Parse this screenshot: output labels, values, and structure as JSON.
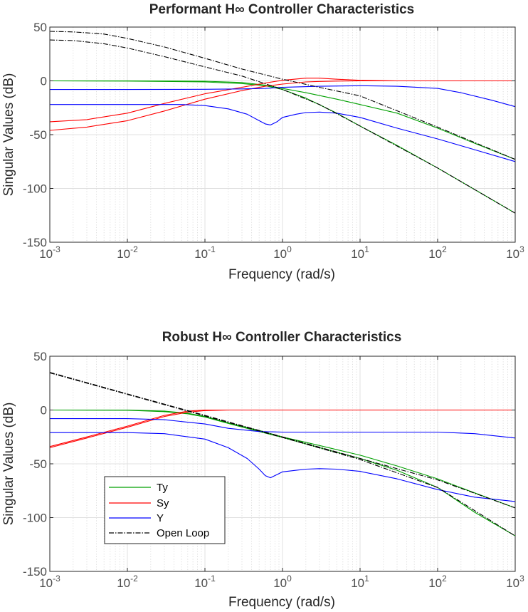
{
  "chart_data": [
    {
      "type": "line",
      "title": "Performant H∞ Controller Characteristics",
      "xlabel": "Frequency (rad/s)",
      "ylabel": "Singular Values (dB)",
      "xscale": "log",
      "xlim": [
        0.001,
        1000
      ],
      "ylim": [
        -150,
        50
      ],
      "xticks": [
        0.001,
        0.01,
        0.1,
        1,
        10,
        100,
        1000
      ],
      "xtick_labels": [
        [
          "10",
          "-3"
        ],
        [
          "10",
          "-2"
        ],
        [
          "10",
          "-1"
        ],
        [
          "10",
          "0"
        ],
        [
          "10",
          "1"
        ],
        [
          "10",
          "2"
        ],
        [
          "10",
          "3"
        ]
      ],
      "yticks": [
        -150,
        -100,
        -50,
        0,
        50
      ],
      "ytick_labels": [
        "-150",
        "-100",
        "-50",
        "0",
        "50"
      ],
      "grid": true,
      "legend": false,
      "series": [
        {
          "group": "Ty",
          "color": "#00a000",
          "x": [
            0.001,
            0.01,
            0.1,
            0.3,
            0.6,
            1,
            2,
            5,
            10,
            30,
            100,
            300,
            1000
          ],
          "y": [
            0,
            0,
            -0.3,
            -1.5,
            -4,
            -7,
            -11,
            -17,
            -22,
            -30,
            -44,
            -58,
            -73
          ]
        },
        {
          "group": "Ty",
          "color": "#00a000",
          "x": [
            0.001,
            0.01,
            0.1,
            0.3,
            0.6,
            1,
            2,
            5,
            10,
            30,
            100,
            300,
            1000
          ],
          "y": [
            0,
            -0.2,
            -1,
            -2.5,
            -4.5,
            -8,
            -16,
            -30,
            -42,
            -60,
            -81,
            -101,
            -123
          ]
        },
        {
          "group": "Sy",
          "color": "#ff0000",
          "x": [
            0.001,
            0.003,
            0.01,
            0.03,
            0.1,
            0.3,
            0.6,
            1,
            2,
            3,
            5,
            10,
            30,
            100,
            1000
          ],
          "y": [
            -38,
            -36,
            -30,
            -21,
            -12,
            -6,
            -2,
            0.5,
            2.5,
            2.5,
            1.5,
            0.5,
            0,
            0,
            0
          ]
        },
        {
          "group": "Sy",
          "color": "#ff0000",
          "x": [
            0.001,
            0.003,
            0.01,
            0.03,
            0.1,
            0.3,
            0.6,
            1,
            2,
            3,
            5,
            10,
            30,
            100,
            1000
          ],
          "y": [
            -46,
            -43,
            -37,
            -28,
            -17,
            -9,
            -5,
            -3,
            -1,
            -0.5,
            -0.2,
            0,
            0,
            0,
            0
          ]
        },
        {
          "group": "Y",
          "color": "#0000ff",
          "x": [
            0.001,
            0.01,
            0.1,
            0.3,
            0.6,
            1,
            3,
            10,
            30,
            100,
            200,
            500,
            1000
          ],
          "y": [
            -8,
            -8,
            -7.8,
            -7.5,
            -7,
            -6,
            -5,
            -4.5,
            -5,
            -7,
            -11,
            -18,
            -24
          ]
        },
        {
          "group": "Y",
          "color": "#0000ff",
          "x": [
            0.001,
            0.01,
            0.05,
            0.1,
            0.2,
            0.35,
            0.5,
            0.6,
            0.7,
            0.85,
            1,
            1.5,
            2,
            3,
            5,
            10,
            30,
            100,
            300,
            1000
          ],
          "y": [
            -22,
            -22,
            -22,
            -23,
            -26,
            -31,
            -37,
            -40,
            -41,
            -38,
            -34,
            -31,
            -29.5,
            -29,
            -30,
            -34,
            -44,
            -54,
            -64,
            -75
          ]
        },
        {
          "group": "Open Loop",
          "color": "#000000",
          "x": [
            0.001,
            0.002,
            0.005,
            0.01,
            0.03,
            0.1,
            0.3,
            1,
            3,
            10,
            100,
            1000
          ],
          "y": [
            46,
            45.5,
            43.5,
            39.5,
            31.5,
            21,
            11,
            1.5,
            -6,
            -14,
            -43,
            -73
          ]
        },
        {
          "group": "Open Loop",
          "color": "#000000",
          "x": [
            0.001,
            0.002,
            0.005,
            0.01,
            0.03,
            0.1,
            0.3,
            1,
            3,
            10,
            100,
            1000
          ],
          "y": [
            38,
            37.5,
            34.5,
            30.5,
            22.5,
            13,
            4.5,
            -8,
            -22,
            -42,
            -81,
            -123
          ]
        }
      ]
    },
    {
      "type": "line",
      "title": "Robust H∞ Controller Characteristics",
      "xlabel": "Frequency (rad/s)",
      "ylabel": "Singular Values (dB)",
      "xscale": "log",
      "xlim": [
        0.001,
        1000
      ],
      "ylim": [
        -150,
        50
      ],
      "xticks": [
        0.001,
        0.01,
        0.1,
        1,
        10,
        100,
        1000
      ],
      "xtick_labels": [
        [
          "10",
          "-3"
        ],
        [
          "10",
          "-2"
        ],
        [
          "10",
          "-1"
        ],
        [
          "10",
          "0"
        ],
        [
          "10",
          "1"
        ],
        [
          "10",
          "2"
        ],
        [
          "10",
          "3"
        ]
      ],
      "yticks": [
        -150,
        -100,
        -50,
        0,
        50
      ],
      "ytick_labels": [
        "-150",
        "-100",
        "-50",
        "0",
        "50"
      ],
      "grid": true,
      "legend": true,
      "legend_location": "lower-left",
      "legend_entries": [
        {
          "label": "Ty",
          "color": "#00a000",
          "style": "solid"
        },
        {
          "label": "Sy",
          "color": "#ff0000",
          "style": "solid"
        },
        {
          "label": "Y",
          "color": "#0000ff",
          "style": "solid"
        },
        {
          "label": "Open Loop",
          "color": "#000000",
          "style": "dashdot"
        }
      ],
      "series": [
        {
          "group": "Ty",
          "color": "#00a000",
          "x": [
            0.001,
            0.01,
            0.03,
            0.06,
            0.1,
            0.2,
            0.5,
            1,
            3,
            10,
            30,
            100,
            300,
            1000
          ],
          "y": [
            0,
            0,
            -1,
            -3,
            -6,
            -12,
            -19,
            -25,
            -33,
            -42,
            -52,
            -64,
            -77,
            -91
          ]
        },
        {
          "group": "Ty",
          "color": "#00a000",
          "x": [
            0.001,
            0.01,
            0.03,
            0.06,
            0.1,
            0.2,
            0.5,
            1,
            3,
            10,
            30,
            100,
            300,
            1000
          ],
          "y": [
            0,
            -0.2,
            -1.5,
            -3.5,
            -6.5,
            -12.5,
            -20,
            -25.5,
            -35,
            -45,
            -56,
            -72,
            -95,
            -117
          ]
        },
        {
          "group": "Sy",
          "color": "#ff0000",
          "x": [
            0.001,
            0.003,
            0.01,
            0.03,
            0.06,
            0.1,
            0.2,
            0.5,
            1,
            10,
            1000
          ],
          "y": [
            -34,
            -25,
            -15,
            -5,
            -1,
            0,
            0,
            0,
            0,
            0,
            0
          ]
        },
        {
          "group": "Sy",
          "color": "#ff0000",
          "x": [
            0.001,
            0.003,
            0.01,
            0.03,
            0.06,
            0.1,
            0.2,
            0.5,
            1,
            10,
            1000
          ],
          "y": [
            -35,
            -26,
            -16,
            -6,
            -2,
            -0.5,
            0,
            0,
            0,
            0,
            0
          ]
        },
        {
          "group": "Y",
          "color": "#0000ff",
          "x": [
            0.001,
            0.01,
            0.03,
            0.1,
            0.2,
            0.5,
            1,
            10,
            100,
            300,
            1000
          ],
          "y": [
            -8,
            -8,
            -9,
            -13,
            -17,
            -20,
            -20.5,
            -20.5,
            -20.5,
            -22,
            -26
          ]
        },
        {
          "group": "Y",
          "color": "#0000ff",
          "x": [
            0.001,
            0.01,
            0.03,
            0.1,
            0.2,
            0.35,
            0.5,
            0.6,
            0.7,
            0.85,
            1,
            1.5,
            2,
            3,
            5,
            10,
            30,
            100,
            300,
            1000
          ],
          "y": [
            -21,
            -21,
            -22,
            -27,
            -35,
            -45,
            -55,
            -61,
            -63,
            -60,
            -57.5,
            -56,
            -55,
            -54.5,
            -55,
            -57,
            -64,
            -74,
            -81,
            -85
          ]
        },
        {
          "group": "Open Loop",
          "color": "#000000",
          "x": [
            0.001,
            0.01,
            0.1,
            1,
            10,
            100,
            1000
          ],
          "y": [
            35,
            15,
            -5,
            -25,
            -45,
            -65,
            -91
          ]
        },
        {
          "group": "Open Loop",
          "color": "#000000",
          "x": [
            0.001,
            0.01,
            0.1,
            1,
            10,
            100,
            1000
          ],
          "y": [
            34.5,
            14.5,
            -5.5,
            -25.5,
            -46,
            -72,
            -117
          ]
        }
      ]
    }
  ]
}
